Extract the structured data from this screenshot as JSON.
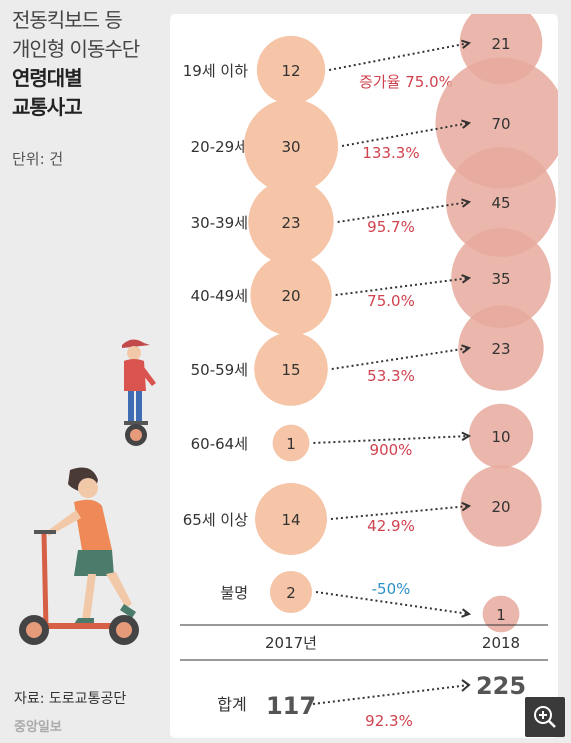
{
  "title_lines": [
    "전동킥보드 등",
    "개인형 이동수단",
    "연령대별",
    "교통사고"
  ],
  "unit": "단위: 건",
  "source": "자료: 도로교통공단",
  "logo": "중앙일보",
  "colors": {
    "light": "#f6c4a6",
    "dark": "#e8a99c",
    "pct_red": "#d0424e",
    "pct_blue": "#2f8fc7",
    "dots": "#333333"
  },
  "icons": {
    "zoom": "zoom-in-icon"
  },
  "chart_data": {
    "type": "bubble",
    "x_labels": [
      "2017년",
      "2018"
    ],
    "categories": [
      "19세 이하",
      "20-29세",
      "30-39세",
      "40-49세",
      "50-59세",
      "60-64세",
      "65세 이상",
      "불명"
    ],
    "series": [
      {
        "name": "2017년",
        "values": [
          12,
          30,
          23,
          20,
          15,
          1,
          14,
          2
        ]
      },
      {
        "name": "2018",
        "values": [
          21,
          70,
          45,
          35,
          23,
          10,
          20,
          1
        ]
      }
    ],
    "change_labels": [
      "증가율 75.0%",
      "133.3%",
      "95.7%",
      "75.0%",
      "53.3%",
      "900%",
      "42.9%",
      "-50%"
    ],
    "total": {
      "label": "합계",
      "v2017": "117",
      "v2018": "225",
      "change": "92.3%"
    }
  }
}
